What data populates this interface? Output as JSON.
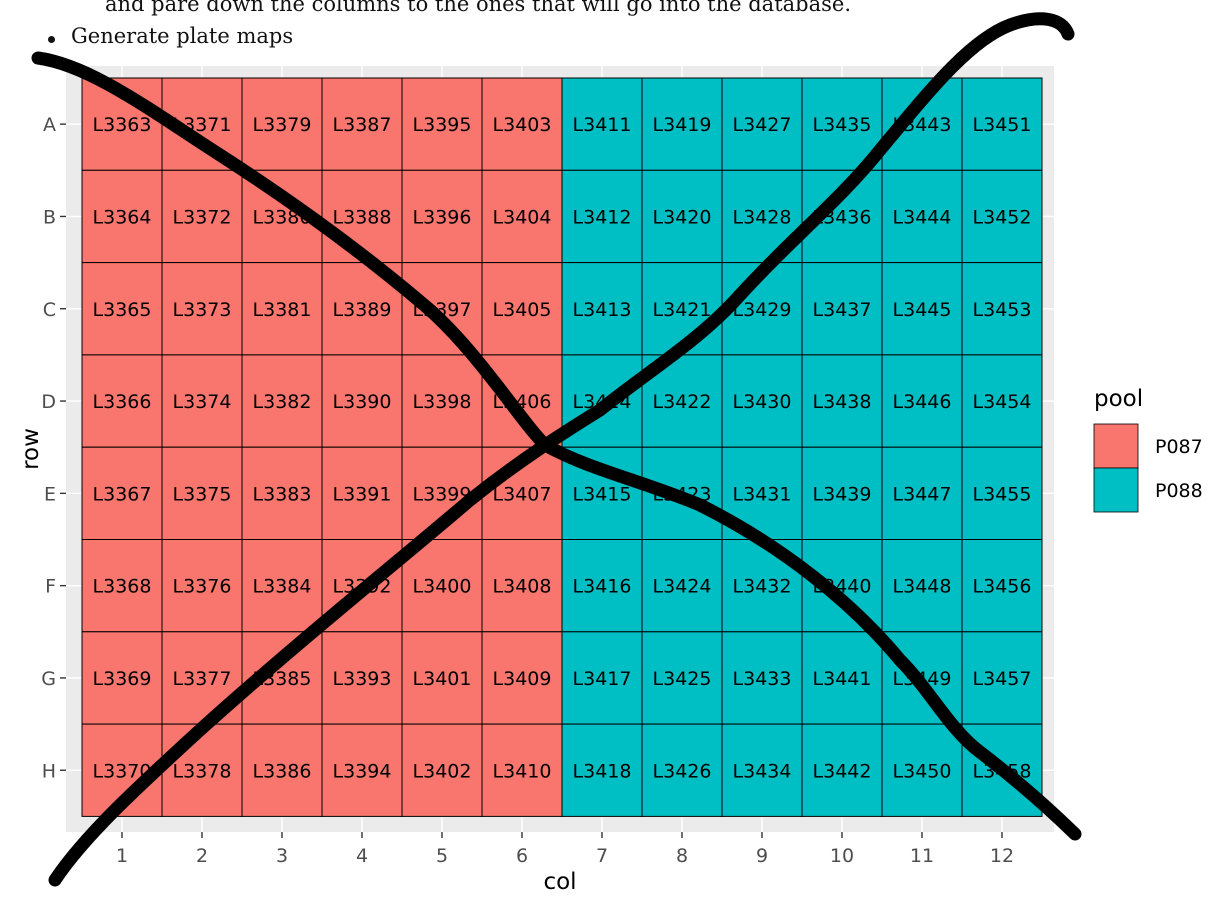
{
  "document": {
    "cut_line": "and pare down the columns to the ones that will go into the database.",
    "bullet": "Generate plate maps"
  },
  "colors": {
    "P087": "#F8766D",
    "P088": "#00BFC4",
    "panel_bg": "#EBEBEB",
    "strike": "#000000"
  },
  "chart_data": {
    "type": "heatmap",
    "title": "",
    "xlabel": "col",
    "ylabel": "row",
    "x_categories": [
      "1",
      "2",
      "3",
      "4",
      "5",
      "6",
      "7",
      "8",
      "9",
      "10",
      "11",
      "12"
    ],
    "y_categories": [
      "A",
      "B",
      "C",
      "D",
      "E",
      "F",
      "G",
      "H"
    ],
    "legend": {
      "title": "pool",
      "placement": "right",
      "entries": [
        {
          "label": "P087",
          "color": "#F8766D"
        },
        {
          "label": "P088",
          "color": "#00BFC4"
        }
      ]
    },
    "cells": [
      [
        "L3363",
        "L3371",
        "L3379",
        "L3387",
        "L3395",
        "L3403",
        "L3411",
        "L3419",
        "L3427",
        "L3435",
        "L3443",
        "L3451"
      ],
      [
        "L3364",
        "L3372",
        "L3380",
        "L3388",
        "L3396",
        "L3404",
        "L3412",
        "L3420",
        "L3428",
        "L3436",
        "L3444",
        "L3452"
      ],
      [
        "L3365",
        "L3373",
        "L3381",
        "L3389",
        "L3397",
        "L3405",
        "L3413",
        "L3421",
        "L3429",
        "L3437",
        "L3445",
        "L3453"
      ],
      [
        "L3366",
        "L3374",
        "L3382",
        "L3390",
        "L3398",
        "L3406",
        "L3414",
        "L3422",
        "L3430",
        "L3438",
        "L3446",
        "L3454"
      ],
      [
        "L3367",
        "L3375",
        "L3383",
        "L3391",
        "L3399",
        "L3407",
        "L3415",
        "L3423",
        "L3431",
        "L3439",
        "L3447",
        "L3455"
      ],
      [
        "L3368",
        "L3376",
        "L3384",
        "L3392",
        "L3400",
        "L3408",
        "L3416",
        "L3424",
        "L3432",
        "L3440",
        "L3448",
        "L3456"
      ],
      [
        "L3369",
        "L3377",
        "L3385",
        "L3393",
        "L3401",
        "L3409",
        "L3417",
        "L3425",
        "L3433",
        "L3441",
        "L3449",
        "L3457"
      ],
      [
        "L3370",
        "L3378",
        "L3386",
        "L3394",
        "L3402",
        "L3410",
        "L3418",
        "L3426",
        "L3434",
        "L3442",
        "L3450",
        "L3458"
      ]
    ],
    "pool_by_col": [
      "P087",
      "P087",
      "P087",
      "P087",
      "P087",
      "P087",
      "P088",
      "P088",
      "P088",
      "P088",
      "P088",
      "P088"
    ],
    "grid": true
  }
}
